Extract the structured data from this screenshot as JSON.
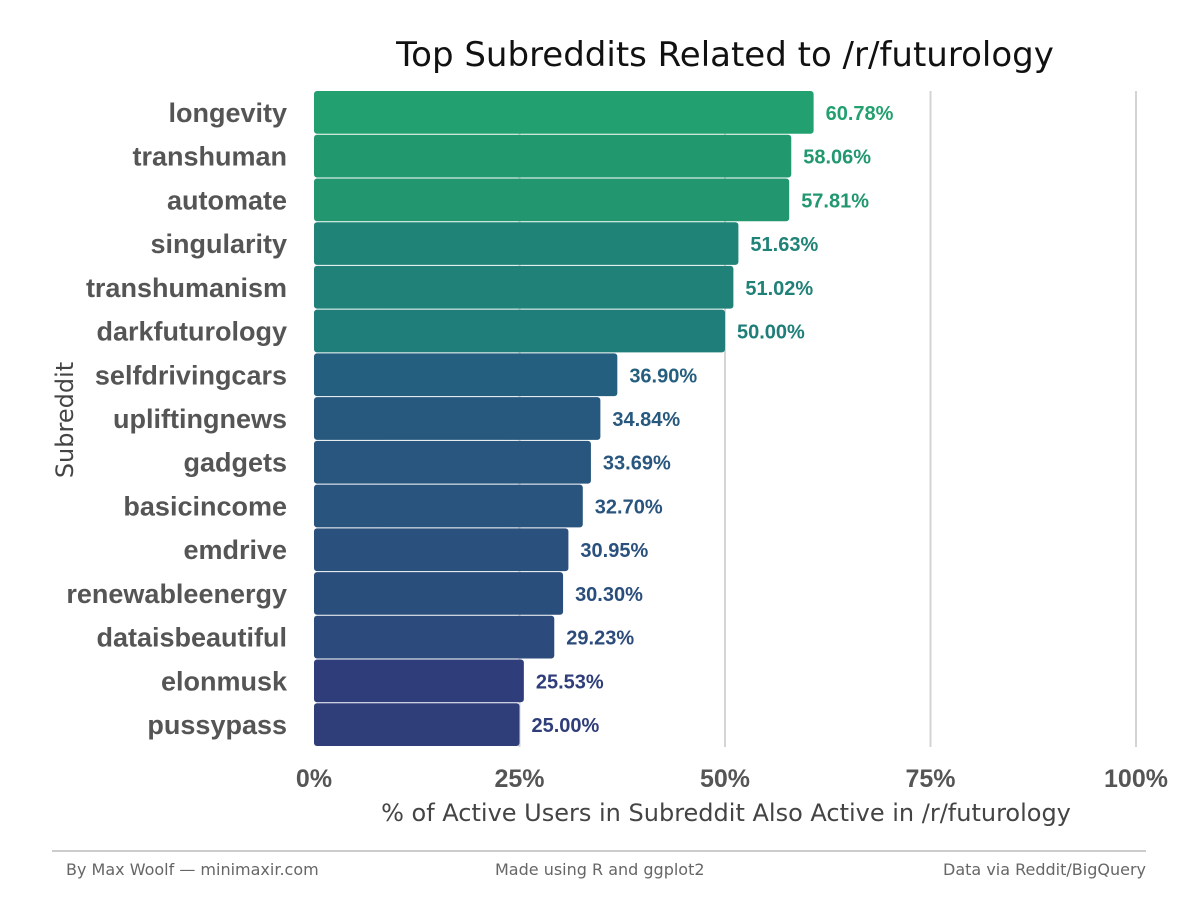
{
  "chart_data": {
    "type": "bar",
    "orientation": "horizontal",
    "title": "Top Subreddits Related to /r/futurology",
    "xlabel": "% of Active Users in Subreddit Also Active in /r/futurology",
    "ylabel": "Subreddit",
    "xlim": [
      0,
      100
    ],
    "xticks": [
      0,
      25,
      50,
      75,
      100
    ],
    "xtick_labels": [
      "0%",
      "25%",
      "50%",
      "75%",
      "100%"
    ],
    "grid": true,
    "categories": [
      "longevity",
      "transhuman",
      "automate",
      "singularity",
      "transhumanism",
      "darkfuturology",
      "selfdrivingcars",
      "upliftingnews",
      "gadgets",
      "basicincome",
      "emdrive",
      "renewableenergy",
      "dataisbeautiful",
      "elonmusk",
      "pussypass"
    ],
    "values": [
      60.78,
      58.06,
      57.81,
      51.63,
      51.02,
      50.0,
      36.9,
      34.84,
      33.69,
      32.7,
      30.95,
      30.3,
      29.23,
      25.53,
      25.0
    ],
    "value_labels": [
      "60.78%",
      "58.06%",
      "57.81%",
      "51.63%",
      "51.02%",
      "50.00%",
      "36.90%",
      "34.84%",
      "33.69%",
      "32.70%",
      "30.95%",
      "30.30%",
      "29.23%",
      "25.53%",
      "25.00%"
    ],
    "colors": [
      "#23A06F",
      "#22986F",
      "#22976F",
      "#1F8377",
      "#1F8177",
      "#1F7E79",
      "#255F7F",
      "#27587E",
      "#28567E",
      "#28547E",
      "#2A507D",
      "#2A4E7C",
      "#2C4B7C",
      "#2F3E7A",
      "#2F3D79"
    ]
  },
  "footer": {
    "left": "By Max Woolf — minimaxir.com",
    "center": "Made using R and ggplot2",
    "right": "Data via Reddit/BigQuery"
  }
}
